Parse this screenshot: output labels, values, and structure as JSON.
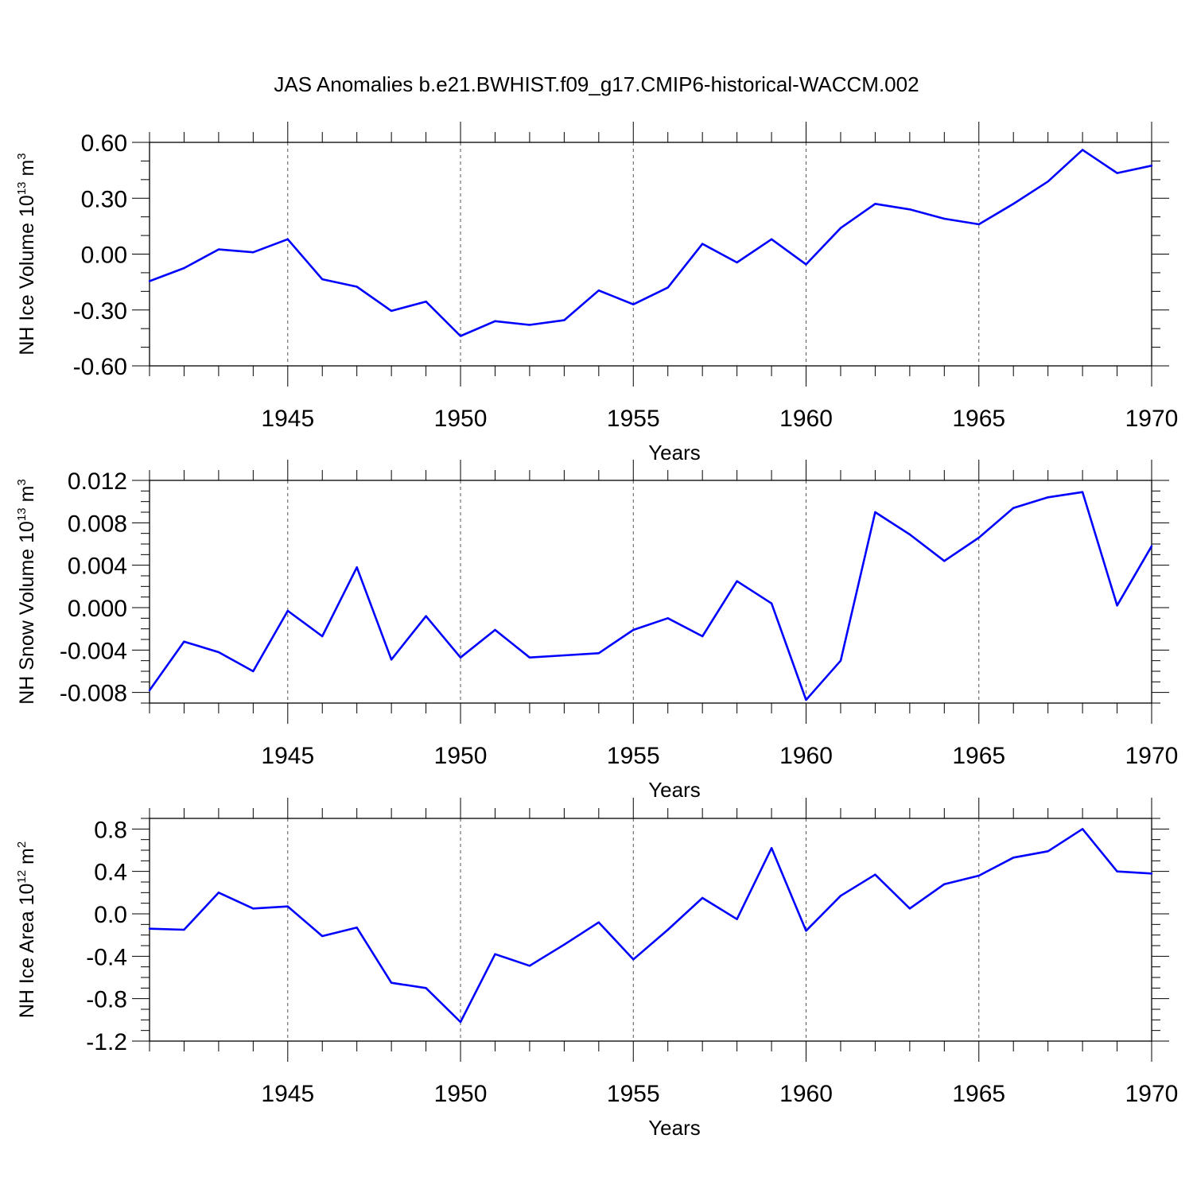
{
  "title": "JAS Anomalies b.e21.BWHIST.f09_g17.CMIP6-historical-WACCM.002",
  "colors": {
    "line": "#0000ff",
    "axis": "#000000",
    "grid": "#555555"
  },
  "chart_data": [
    {
      "type": "line",
      "ylabel": {
        "text": "NH Ice Volume 10",
        "sup": "13",
        "unit": " m",
        "unit_sup": "3"
      },
      "xlabel": "Years",
      "xlim": [
        1941,
        1970
      ],
      "ylim": [
        -0.6,
        0.6
      ],
      "x_ticks": [
        1945,
        1950,
        1955,
        1960,
        1965,
        1970
      ],
      "x_tick_labels": [
        "1945",
        "1950",
        "1955",
        "1960",
        "1965",
        "1970"
      ],
      "y_ticks": [
        -0.6,
        -0.3,
        0.0,
        0.3,
        0.6
      ],
      "y_tick_labels": [
        "-0.60",
        "-0.30",
        "0.00",
        "0.30",
        "0.60"
      ],
      "y_minor_step": 0.1,
      "grid": "vertical dashed at major x ticks",
      "x": [
        1941,
        1942,
        1943,
        1944,
        1945,
        1946,
        1947,
        1948,
        1949,
        1950,
        1951,
        1952,
        1953,
        1954,
        1955,
        1956,
        1957,
        1958,
        1959,
        1960,
        1961,
        1962,
        1963,
        1964,
        1965,
        1966,
        1967,
        1968,
        1969,
        1970
      ],
      "series": [
        {
          "values": [
            -0.145,
            -0.075,
            0.025,
            0.01,
            0.08,
            -0.135,
            -0.175,
            -0.305,
            -0.255,
            -0.44,
            -0.36,
            -0.38,
            -0.355,
            -0.195,
            -0.27,
            -0.18,
            0.055,
            -0.045,
            0.08,
            -0.055,
            0.14,
            0.27,
            0.24,
            0.19,
            0.16,
            0.27,
            0.39,
            0.56,
            0.435,
            0.475
          ]
        }
      ]
    },
    {
      "type": "line",
      "ylabel": {
        "text": "NH Snow Volume 10",
        "sup": "13",
        "unit": " m",
        "unit_sup": "3"
      },
      "xlabel": "Years",
      "xlim": [
        1941,
        1970
      ],
      "ylim": [
        -0.009,
        0.012
      ],
      "x_ticks": [
        1945,
        1950,
        1955,
        1960,
        1965,
        1970
      ],
      "x_tick_labels": [
        "1945",
        "1950",
        "1955",
        "1960",
        "1965",
        "1970"
      ],
      "y_ticks": [
        -0.008,
        -0.004,
        0.0,
        0.004,
        0.008,
        0.012
      ],
      "y_tick_labels": [
        "-0.008",
        "-0.004",
        "0.000",
        "0.004",
        "0.008",
        "0.012"
      ],
      "y_minor_step": 0.001,
      "grid": "vertical dashed at major x ticks",
      "x": [
        1941,
        1942,
        1943,
        1944,
        1945,
        1946,
        1947,
        1948,
        1949,
        1950,
        1951,
        1952,
        1953,
        1954,
        1955,
        1956,
        1957,
        1958,
        1959,
        1960,
        1961,
        1962,
        1963,
        1964,
        1965,
        1966,
        1967,
        1968,
        1969,
        1970
      ],
      "series": [
        {
          "values": [
            -0.0078,
            -0.0032,
            -0.0042,
            -0.006,
            -0.0003,
            -0.0027,
            0.0038,
            -0.0049,
            -0.0008,
            -0.0047,
            -0.0021,
            -0.0047,
            -0.0045,
            -0.0043,
            -0.0021,
            -0.001,
            -0.0027,
            0.0025,
            0.0004,
            -0.0087,
            -0.005,
            0.009,
            0.0069,
            0.0044,
            0.0066,
            0.0094,
            0.0104,
            0.0109,
            0.0002,
            0.0058
          ]
        }
      ]
    },
    {
      "type": "line",
      "ylabel": {
        "text": "NH Ice Area 10",
        "sup": "12",
        "unit": " m",
        "unit_sup": "2"
      },
      "xlabel": "Years",
      "xlim": [
        1941,
        1970
      ],
      "ylim": [
        -1.2,
        0.9
      ],
      "x_ticks": [
        1945,
        1950,
        1955,
        1960,
        1965,
        1970
      ],
      "x_tick_labels": [
        "1945",
        "1950",
        "1955",
        "1960",
        "1965",
        "1970"
      ],
      "y_ticks": [
        -1.2,
        -0.8,
        -0.4,
        0.0,
        0.4,
        0.8
      ],
      "y_tick_labels": [
        "-1.2",
        "-0.8",
        "-0.4",
        "0.0",
        "0.4",
        "0.8"
      ],
      "y_minor_step": 0.1,
      "grid": "vertical dashed at major x ticks",
      "x": [
        1941,
        1942,
        1943,
        1944,
        1945,
        1946,
        1947,
        1948,
        1949,
        1950,
        1951,
        1952,
        1953,
        1954,
        1955,
        1956,
        1957,
        1958,
        1959,
        1960,
        1961,
        1962,
        1963,
        1964,
        1965,
        1966,
        1967,
        1968,
        1969,
        1970
      ],
      "series": [
        {
          "values": [
            -0.14,
            -0.15,
            0.2,
            0.05,
            0.07,
            -0.21,
            -0.13,
            -0.65,
            -0.7,
            -1.02,
            -0.38,
            -0.49,
            -0.29,
            -0.08,
            -0.43,
            -0.15,
            0.15,
            -0.05,
            0.62,
            -0.16,
            0.17,
            0.37,
            0.05,
            0.28,
            0.36,
            0.53,
            0.59,
            0.8,
            0.4,
            0.38
          ]
        }
      ]
    }
  ]
}
